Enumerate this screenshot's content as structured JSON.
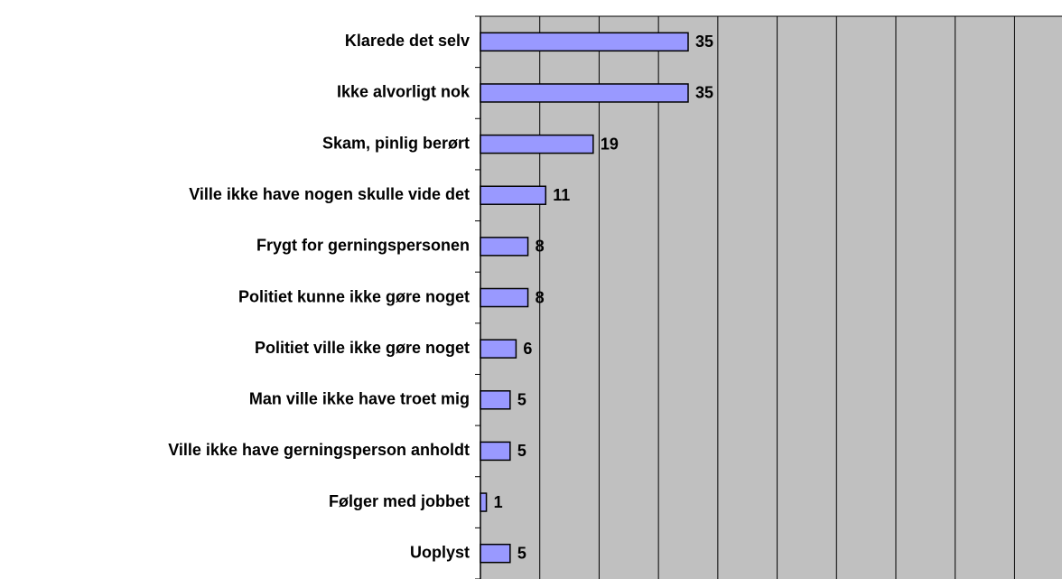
{
  "chart_data": {
    "type": "bar",
    "orientation": "horizontal",
    "categories": [
      "Klarede det selv",
      "Ikke alvorligt nok",
      "Skam, pinlig berørt",
      "Ville ikke have nogen skulle vide det",
      "Frygt for gerningspersonen",
      "Politiet kunne ikke gøre noget",
      "Politiet ville ikke gøre noget",
      "Man ville ikke have troet mig",
      "Ville ikke have gerningsperson anholdt",
      "Følger med jobbet",
      "Uoplyst"
    ],
    "values": [
      35,
      35,
      19,
      11,
      8,
      8,
      6,
      5,
      5,
      1,
      5
    ],
    "color": "#9999ff",
    "xlim": [
      0,
      98
    ],
    "xticks": [
      0,
      10,
      20,
      30,
      40,
      50,
      60,
      70,
      80,
      90
    ],
    "grid": true
  }
}
